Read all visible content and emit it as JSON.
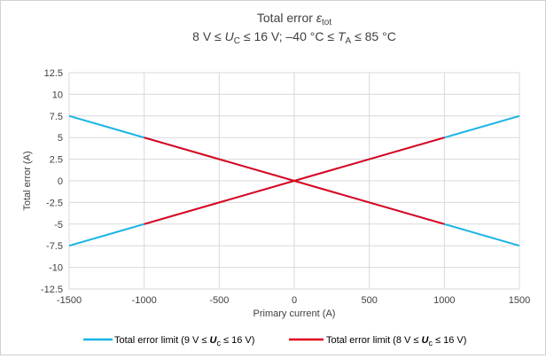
{
  "chart_data": {
    "type": "line",
    "title": {
      "prefix": "Total error ",
      "symbol": "ε",
      "subscript": "tot"
    },
    "subtitle": {
      "part1": "8 V ≤ ",
      "var1": "U",
      "sub1": "C",
      "part2": " ≤ 16 V; –40 °C ≤ ",
      "var2": "T",
      "sub2": "A",
      "part3": " ≤ 85 °C"
    },
    "xlabel": "Primary current (A)",
    "ylabel": "Total error (A)",
    "xlim": [
      -1500,
      1500
    ],
    "ylim": [
      -12.5,
      12.5
    ],
    "xticks": [
      "-1500",
      "-1000",
      "-500",
      "0",
      "500",
      "1000",
      "1500"
    ],
    "yticks": [
      "12.5",
      "10",
      "7.5",
      "5",
      "2.5",
      "0",
      "-2.5",
      "-5",
      "-7.5",
      "-10",
      "-12.5"
    ],
    "grid": true,
    "legend_position": "bottom",
    "series": [
      {
        "name": "Total error limit (9 V ≤ Uc ≤ 16 V)",
        "color": "#19b4e6",
        "lines": [
          {
            "x": [
              -1500,
              1500
            ],
            "y": [
              7.5,
              -7.5
            ]
          },
          {
            "x": [
              -1500,
              1500
            ],
            "y": [
              -7.5,
              7.5
            ]
          }
        ]
      },
      {
        "name": "Total error limit (8 V ≤ Uc ≤ 16 V)",
        "color": "#e3001b",
        "lines": [
          {
            "x": [
              -1000,
              1000
            ],
            "y": [
              5,
              -5
            ]
          },
          {
            "x": [
              -1000,
              1000
            ],
            "y": [
              -5,
              5
            ]
          }
        ]
      }
    ],
    "legend": [
      {
        "pre": "Total error limit  (9 V ≤ ",
        "var": "U",
        "sub": "c",
        "post": " ≤ 16 V)"
      },
      {
        "pre": "Total error limit (8 V ≤ ",
        "var": "U",
        "sub": "c",
        "post": " ≤ 16 V)"
      }
    ]
  }
}
